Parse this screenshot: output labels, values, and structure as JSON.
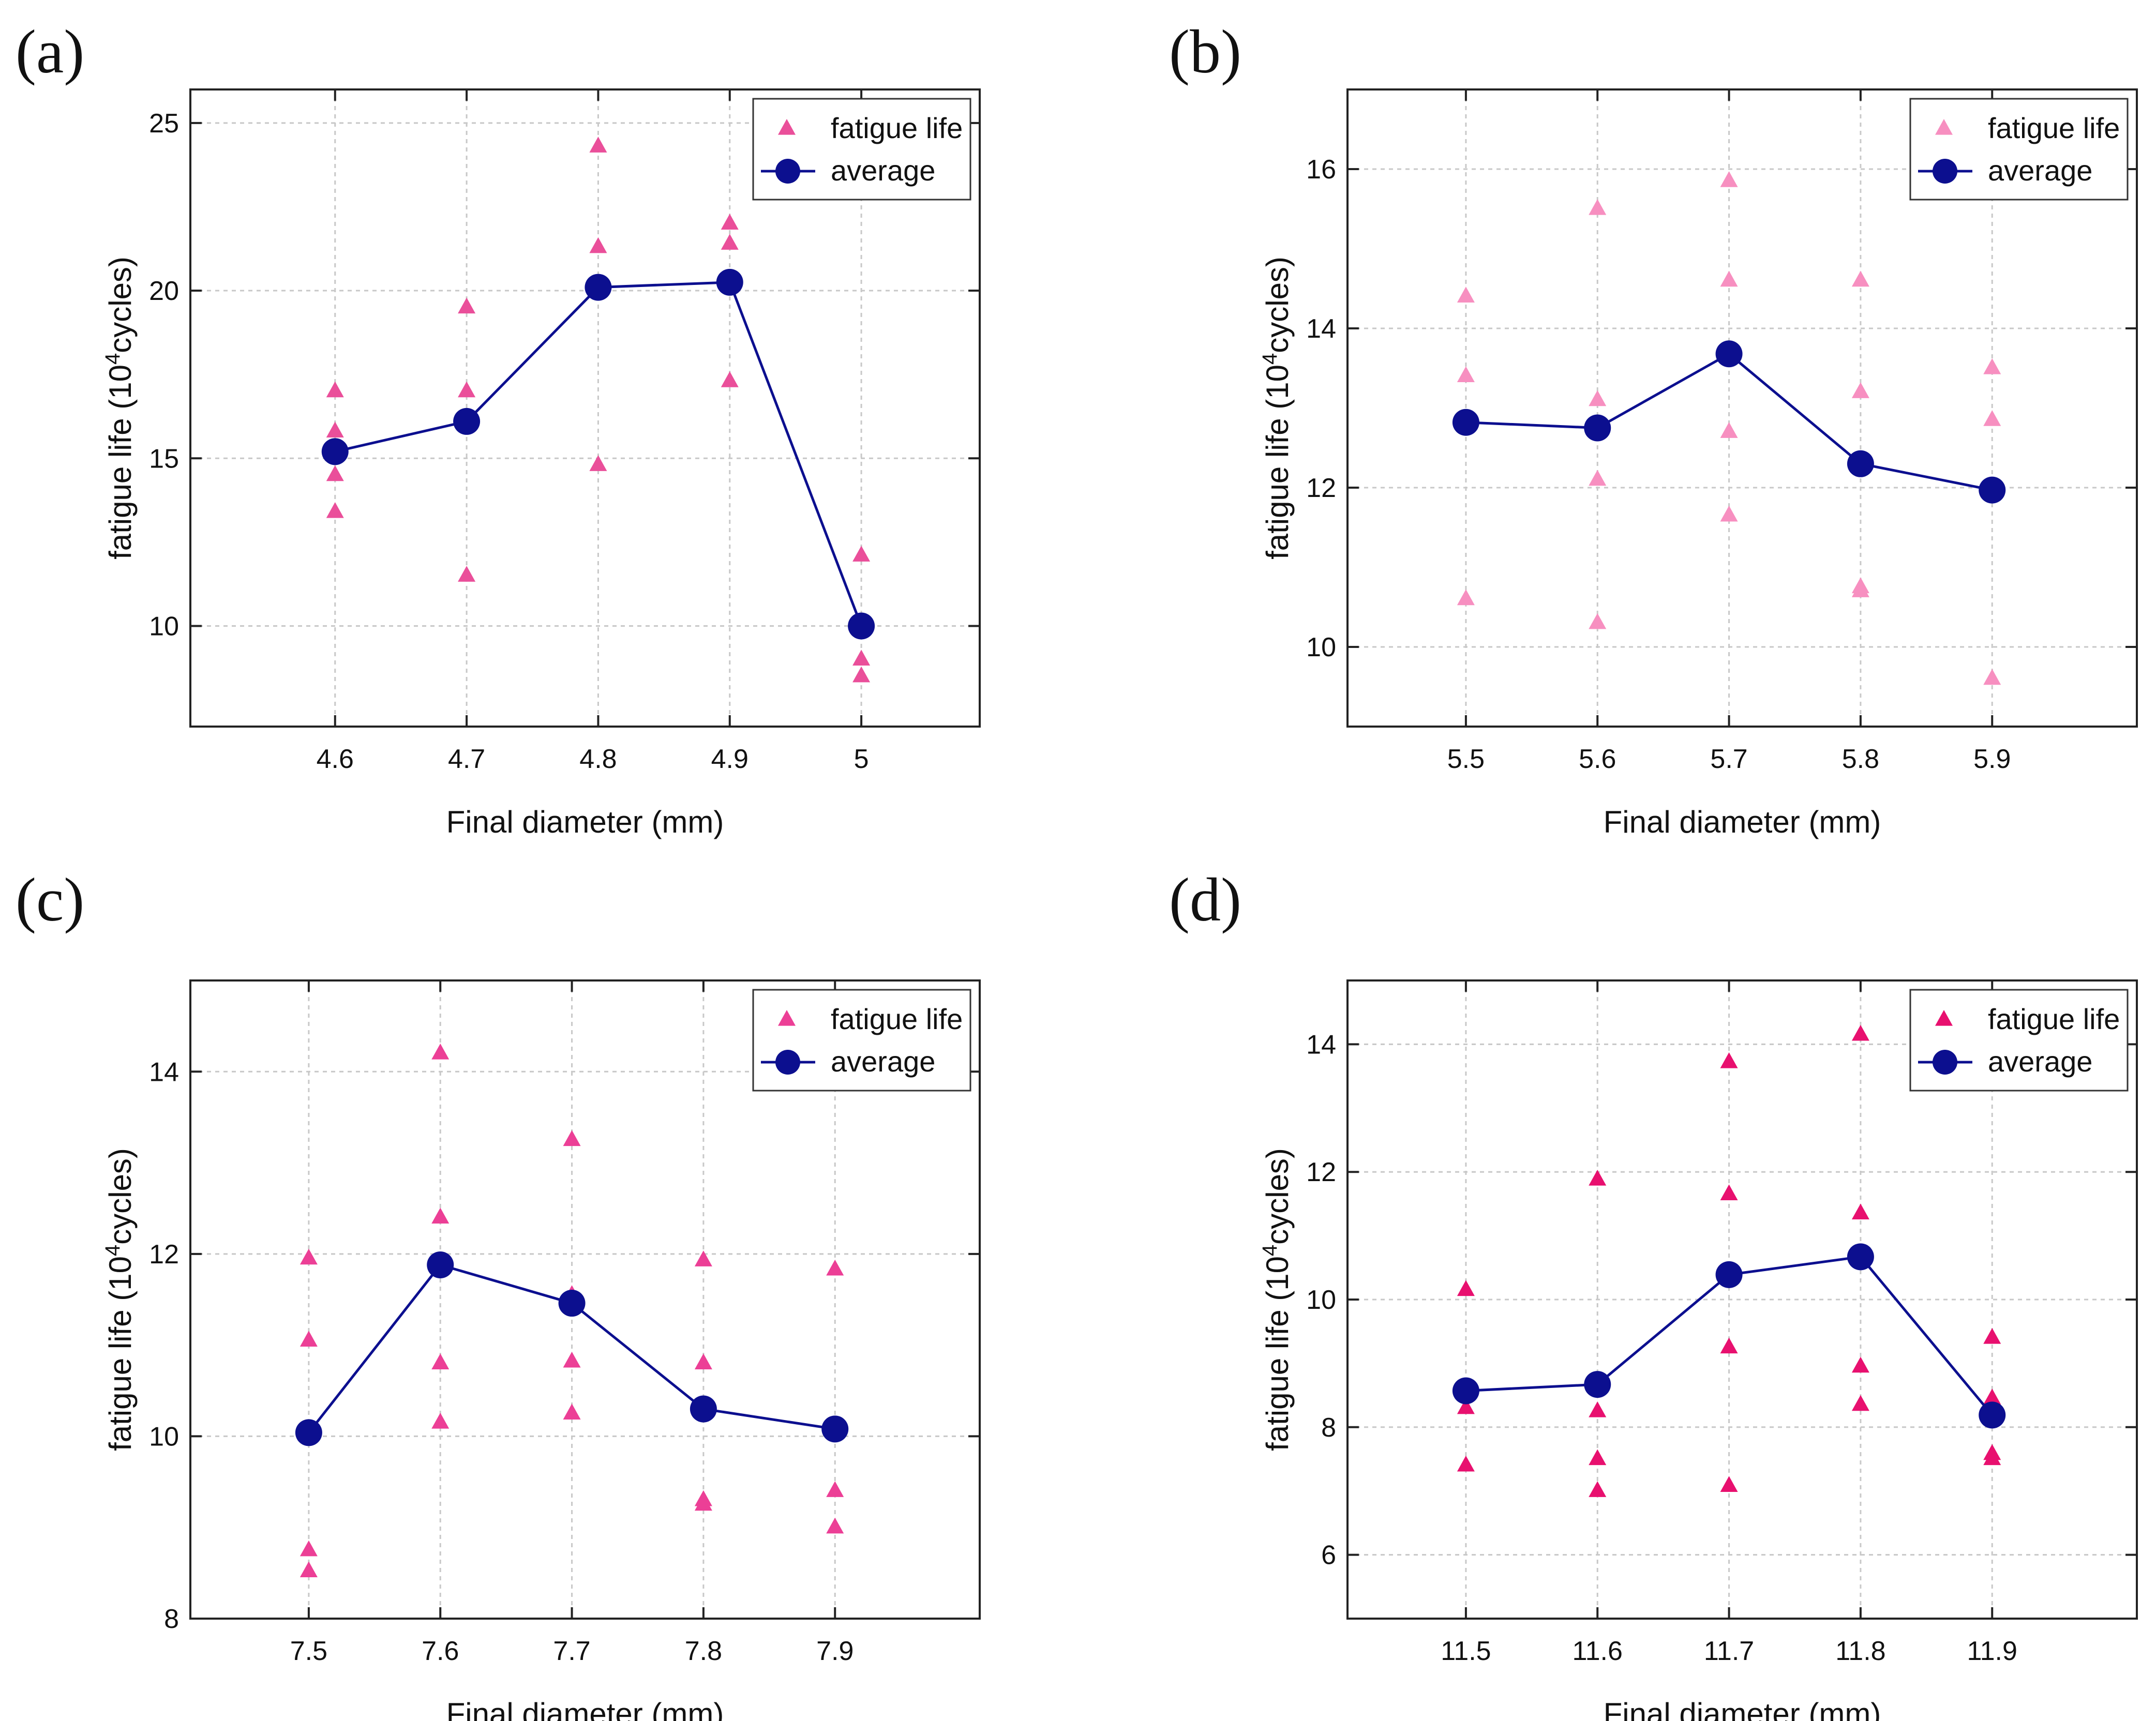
{
  "chart_data": [
    {
      "panel_label": "(a)",
      "type": "scatter",
      "xlabel": "Final diameter (mm)",
      "ylabel_prefix": "fatigue life (10",
      "ylabel_sup": "4",
      "ylabel_suffix": "cycles)",
      "xlim": [
        4.49,
        5.09
      ],
      "ylim": [
        7,
        26
      ],
      "xticks": [
        4.6,
        4.7,
        4.8,
        4.9,
        5.0
      ],
      "xtick_labels": [
        "4.6",
        "4.7",
        "4.8",
        "4.9",
        "5"
      ],
      "yticks": [
        10,
        15,
        20,
        25
      ],
      "ytick_labels": [
        "10",
        "15",
        "20",
        "25"
      ],
      "grid": true,
      "legend": {
        "position": "top-right",
        "entries": [
          "fatigue life",
          "average"
        ]
      },
      "scatter_color": "#ea4f9a",
      "series": [
        {
          "name": "fatigue life",
          "points": [
            [
              4.6,
              17.0
            ],
            [
              4.6,
              15.8
            ],
            [
              4.6,
              14.5
            ],
            [
              4.6,
              13.4
            ],
            [
              4.7,
              19.5
            ],
            [
              4.7,
              17.0
            ],
            [
              4.7,
              11.5
            ],
            [
              4.8,
              24.3
            ],
            [
              4.8,
              21.3
            ],
            [
              4.8,
              14.8
            ],
            [
              4.9,
              22.0
            ],
            [
              4.9,
              21.4
            ],
            [
              4.9,
              17.3
            ],
            [
              5.0,
              12.1
            ],
            [
              5.0,
              9.0
            ],
            [
              5.0,
              8.5
            ]
          ]
        },
        {
          "name": "average",
          "x": [
            4.6,
            4.7,
            4.8,
            4.9,
            5.0
          ],
          "y": [
            15.2,
            16.1,
            20.1,
            20.25,
            10.0
          ]
        }
      ]
    },
    {
      "panel_label": "(b)",
      "type": "scatter",
      "xlabel": "Final diameter (mm)",
      "ylabel_prefix": "fatigue life (10",
      "ylabel_sup": "4",
      "ylabel_suffix": "cycles)",
      "xlim": [
        5.41,
        6.01
      ],
      "ylim": [
        9,
        17
      ],
      "xticks": [
        5.5,
        5.6,
        5.7,
        5.8,
        5.9
      ],
      "xtick_labels": [
        "5.5",
        "5.6",
        "5.7",
        "5.8",
        "5.9"
      ],
      "yticks": [
        10,
        12,
        14,
        16
      ],
      "ytick_labels": [
        "10",
        "12",
        "14",
        "16"
      ],
      "grid": true,
      "legend": {
        "position": "top-right",
        "entries": [
          "fatigue life",
          "average"
        ]
      },
      "scatter_color": "#f78fc0",
      "series": [
        {
          "name": "fatigue life",
          "points": [
            [
              5.5,
              14.4
            ],
            [
              5.5,
              13.4
            ],
            [
              5.5,
              10.6
            ],
            [
              5.6,
              15.5
            ],
            [
              5.6,
              13.1
            ],
            [
              5.6,
              12.1
            ],
            [
              5.6,
              10.3
            ],
            [
              5.7,
              15.85
            ],
            [
              5.7,
              14.6
            ],
            [
              5.7,
              12.7
            ],
            [
              5.7,
              11.65
            ],
            [
              5.8,
              14.6
            ],
            [
              5.8,
              13.2
            ],
            [
              5.8,
              10.75
            ],
            [
              5.8,
              10.7
            ],
            [
              5.9,
              13.5
            ],
            [
              5.9,
              12.85
            ],
            [
              5.9,
              9.6
            ]
          ]
        },
        {
          "name": "average",
          "x": [
            5.5,
            5.6,
            5.7,
            5.8,
            5.9
          ],
          "y": [
            12.82,
            12.75,
            13.68,
            12.3,
            11.97
          ]
        }
      ]
    },
    {
      "panel_label": "(c)",
      "type": "scatter",
      "xlabel": "Final diameter (mm)",
      "ylabel_prefix": "fatigue life (10",
      "ylabel_sup": "4",
      "ylabel_suffix": "cycles)",
      "xlim": [
        7.41,
        8.01
      ],
      "ylim": [
        8,
        15
      ],
      "xticks": [
        7.5,
        7.6,
        7.7,
        7.8,
        7.9
      ],
      "xtick_labels": [
        "7.5",
        "7.6",
        "7.7",
        "7.8",
        "7.9"
      ],
      "yticks": [
        8,
        10,
        12,
        14
      ],
      "ytick_labels": [
        "8",
        "10",
        "12",
        "14"
      ],
      "grid": true,
      "legend": {
        "position": "top-right",
        "entries": [
          "fatigue life",
          "average"
        ]
      },
      "scatter_color": "#ec3f96",
      "series": [
        {
          "name": "fatigue life",
          "points": [
            [
              7.5,
              11.95
            ],
            [
              7.5,
              11.05
            ],
            [
              7.5,
              8.75
            ],
            [
              7.5,
              8.52
            ],
            [
              7.6,
              14.2
            ],
            [
              7.6,
              12.4
            ],
            [
              7.6,
              10.8
            ],
            [
              7.6,
              10.15
            ],
            [
              7.7,
              13.25
            ],
            [
              7.7,
              11.55
            ],
            [
              7.7,
              10.82
            ],
            [
              7.7,
              10.25
            ],
            [
              7.8,
              11.93
            ],
            [
              7.8,
              10.8
            ],
            [
              7.8,
              9.3
            ],
            [
              7.8,
              9.25
            ],
            [
              7.9,
              11.83
            ],
            [
              7.9,
              9.4
            ],
            [
              7.9,
              9.0
            ]
          ]
        },
        {
          "name": "average",
          "x": [
            7.5,
            7.6,
            7.7,
            7.8,
            7.9
          ],
          "y": [
            10.04,
            11.88,
            11.46,
            10.3,
            10.08
          ]
        }
      ]
    },
    {
      "panel_label": "(d)",
      "type": "scatter",
      "xlabel": "Final diameter (mm)",
      "ylabel_prefix": "fatigue life (10",
      "ylabel_sup": "4",
      "ylabel_suffix": "cycles)",
      "xlim": [
        11.41,
        12.01
      ],
      "ylim": [
        5,
        15
      ],
      "xticks": [
        11.5,
        11.6,
        11.7,
        11.8,
        11.9
      ],
      "xtick_labels": [
        "11.5",
        "11.6",
        "11.7",
        "11.8",
        "11.9"
      ],
      "yticks": [
        6,
        8,
        10,
        12,
        14
      ],
      "ytick_labels": [
        "6",
        "8",
        "10",
        "12",
        "14"
      ],
      "grid": true,
      "legend": {
        "position": "top-right",
        "entries": [
          "fatigue life",
          "average"
        ]
      },
      "scatter_color": "#e8106f",
      "series": [
        {
          "name": "fatigue life",
          "points": [
            [
              11.5,
              10.15
            ],
            [
              11.5,
              8.3
            ],
            [
              11.5,
              7.4
            ],
            [
              11.6,
              11.88
            ],
            [
              11.6,
              8.25
            ],
            [
              11.6,
              7.5
            ],
            [
              11.6,
              7.0
            ],
            [
              11.7,
              13.72
            ],
            [
              11.7,
              11.65
            ],
            [
              11.7,
              9.25
            ],
            [
              11.7,
              7.08
            ],
            [
              11.8,
              14.15
            ],
            [
              11.8,
              11.35
            ],
            [
              11.8,
              8.95
            ],
            [
              11.8,
              8.35
            ],
            [
              11.9,
              9.4
            ],
            [
              11.9,
              8.45
            ],
            [
              11.9,
              7.58
            ],
            [
              11.9,
              7.5
            ]
          ]
        },
        {
          "name": "average",
          "x": [
            11.5,
            11.6,
            11.7,
            11.8,
            11.9
          ],
          "y": [
            8.57,
            8.67,
            10.39,
            10.67,
            8.19
          ]
        }
      ]
    }
  ],
  "colors": {
    "average": "#0c0f8f",
    "grid": "#c8c8c8",
    "axis": "#222222"
  }
}
